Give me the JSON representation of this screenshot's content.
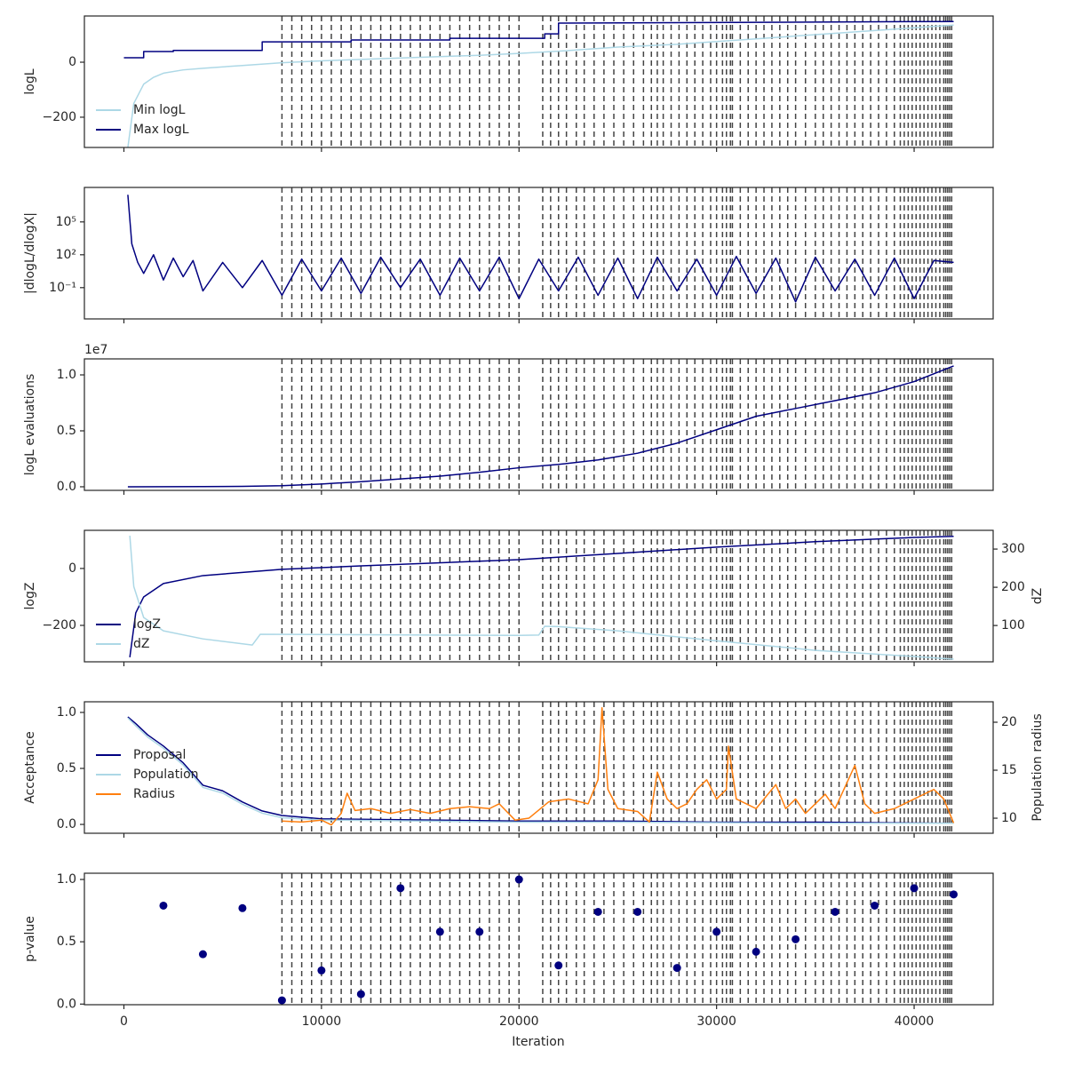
{
  "xlim": [
    -2000,
    44000
  ],
  "xticks": [
    0,
    10000,
    20000,
    30000,
    40000
  ],
  "xlabel": "Iteration",
  "vlines": [
    8000,
    8500,
    9000,
    9500,
    10000,
    10500,
    11000,
    11500,
    12000,
    12500,
    13000,
    13500,
    14000,
    14500,
    15000,
    15500,
    16000,
    16500,
    17000,
    17500,
    18000,
    18500,
    19000,
    19500,
    20000,
    21200,
    21600,
    22000,
    22400,
    22900,
    23300,
    23800,
    24300,
    24800,
    25300,
    25800,
    26300,
    26700,
    27000,
    27300,
    27700,
    28100,
    28500,
    28900,
    29300,
    29700,
    30000,
    30300,
    30500,
    30700,
    30800,
    31200,
    31600,
    32000,
    32400,
    32800,
    33200,
    33600,
    34000,
    34500,
    35000,
    35400,
    35800,
    36200,
    36600,
    37000,
    37400,
    37800,
    38200,
    38600,
    39000,
    39300,
    39500,
    39700,
    39900,
    40100,
    40300,
    40500,
    40700,
    40900,
    41100,
    41300,
    41500,
    41600,
    41700,
    41800,
    41900
  ],
  "chart_data": [
    {
      "type": "line",
      "ylabel": "logL",
      "ylim": [
        -310,
        168
      ],
      "yticks": [
        {
          "value": -200,
          "label": "−200"
        },
        0
      ],
      "legend": "lower left",
      "series": [
        {
          "name": "Min logL",
          "color": "#add8e6",
          "x": [
            200,
            500,
            1000,
            1500,
            2000,
            3000,
            4000,
            6000,
            8000,
            10000,
            12000,
            15000,
            18000,
            20000,
            22000,
            25000,
            28000,
            30000,
            32000,
            35000,
            38000,
            40000,
            42000
          ],
          "values": [
            -310,
            -150,
            -80,
            -55,
            -40,
            -28,
            -22,
            -12,
            -2,
            5,
            10,
            18,
            25,
            32,
            40,
            55,
            65,
            75,
            85,
            100,
            115,
            125,
            135
          ]
        },
        {
          "name": "Max logL",
          "color": "#000080",
          "x": [
            0,
            1000,
            1000,
            2500,
            2500,
            7000,
            7000,
            11500,
            11500,
            16500,
            16500,
            21300,
            21300,
            22000,
            22000,
            42000
          ],
          "values": [
            16,
            16,
            39,
            39,
            43,
            43,
            74,
            74,
            81,
            81,
            87,
            87,
            103,
            103,
            142,
            148
          ]
        }
      ]
    },
    {
      "type": "line",
      "ylabel": "|dlogL/dlogX|",
      "log_scale": true,
      "ylim": [
        0.00014,
        140000000
      ],
      "yticks": [
        {
          "value": 0.1,
          "label": "10⁻¹"
        },
        {
          "value": 100,
          "label": "10²"
        },
        {
          "value": 100000,
          "label": "10⁵"
        }
      ],
      "series": [
        {
          "color": "#000080",
          "x": [
            200,
            400,
            700,
            1000,
            1500,
            2000,
            2500,
            3000,
            3500,
            4000,
            5000,
            6000,
            7000,
            8000,
            9000,
            10000,
            11000,
            12000,
            13000,
            14000,
            15000,
            16000,
            17000,
            18000,
            19000,
            20000,
            21000,
            22000,
            23000,
            24000,
            25000,
            26000,
            27000,
            28000,
            29000,
            30000,
            31000,
            32000,
            33000,
            34000,
            35000,
            36000,
            37000,
            38000,
            39000,
            40000,
            41000,
            42000
          ],
          "values": [
            30000000,
            1000,
            20,
            2,
            100,
            0.5,
            50,
            1,
            30,
            0.05,
            20,
            0.1,
            30,
            0.02,
            40,
            0.05,
            50,
            0.03,
            60,
            0.1,
            40,
            0.02,
            50,
            0.05,
            60,
            0.01,
            40,
            0.05,
            60,
            0.02,
            50,
            0.01,
            60,
            0.05,
            40,
            0.02,
            70,
            0.03,
            50,
            0.005,
            60,
            0.05,
            40,
            0.02,
            50,
            0.01,
            30,
            20
          ]
        }
      ]
    },
    {
      "type": "line",
      "ylabel": "logL evaluations",
      "offset_label": "1e7",
      "ylim": [
        -320000,
        11430000
      ],
      "yticks": [
        {
          "value": 0,
          "label": "0.0"
        },
        {
          "value": 5000000,
          "label": "0.5"
        },
        {
          "value": 10000000,
          "label": "1.0"
        }
      ],
      "series": [
        {
          "color": "#000080",
          "x": [
            200,
            2000,
            4000,
            6000,
            8000,
            10000,
            12000,
            14000,
            16000,
            18000,
            20000,
            22000,
            24000,
            26000,
            28000,
            30000,
            32000,
            34000,
            36000,
            38000,
            40000,
            42000
          ],
          "values": [
            0,
            10000,
            20000,
            40000,
            100000,
            250000,
            450000,
            700000,
            950000,
            1300000,
            1700000,
            2000000,
            2400000,
            3000000,
            3900000,
            5100000,
            6300000,
            7000000,
            7700000,
            8400000,
            9400000,
            10800000
          ]
        }
      ]
    },
    {
      "type": "line",
      "ylabel": "logZ",
      "y2label": "dZ",
      "ylim": [
        -328,
        134
      ],
      "yticks": [
        {
          "value": -200,
          "label": "−200"
        },
        0
      ],
      "y2lim": [
        5,
        349
      ],
      "y2ticks": [
        100,
        200,
        300
      ],
      "legend": "lower left",
      "series": [
        {
          "name": "logZ",
          "color": "#000080",
          "x": [
            300,
            600,
            1000,
            2000,
            4000,
            8000,
            12000,
            20000,
            25000,
            30000,
            35000,
            40000,
            42000
          ],
          "values": [
            -312,
            -156,
            -100,
            -53,
            -25,
            -3,
            9,
            31,
            53,
            75,
            94,
            109,
            113
          ]
        },
        {
          "name": "dZ",
          "color": "#add8e6",
          "axis": "y2",
          "x": [
            300,
            500,
            1000,
            2000,
            4000,
            6500,
            6900,
            12000,
            20000,
            21000,
            21300,
            22000,
            25000,
            30000,
            35000,
            40000,
            42000
          ],
          "values": [
            335,
            202,
            121,
            86,
            65,
            49,
            77,
            76,
            74,
            75,
            98,
            97,
            86,
            60,
            35,
            19,
            12
          ]
        }
      ]
    },
    {
      "type": "line",
      "ylabel": "Acceptance",
      "y2label": "Population radius",
      "ylim": [
        -0.079,
        1.095
      ],
      "yticks": [
        {
          "value": 0,
          "label": "0.0"
        },
        {
          "value": 0.5,
          "label": "0.5"
        },
        {
          "value": 1,
          "label": "1.0"
        }
      ],
      "y2lim": [
        8.43,
        22.13
      ],
      "y2ticks": [
        10,
        15,
        20
      ],
      "legend": "center left",
      "series": [
        {
          "name": "Proposal",
          "color": "#000080",
          "x": [
            200,
            600,
            1200,
            2000,
            3000,
            3500,
            4000,
            5000,
            6000,
            7000,
            8000,
            10000,
            15000,
            20000,
            25000,
            30000,
            35000,
            42000
          ],
          "values": [
            0.96,
            0.9,
            0.8,
            0.7,
            0.55,
            0.45,
            0.35,
            0.3,
            0.2,
            0.12,
            0.08,
            0.05,
            0.04,
            0.03,
            0.03,
            0.02,
            0.02,
            0.01
          ]
        },
        {
          "name": "Population",
          "color": "#add8e6",
          "x": [
            200,
            600,
            1200,
            2000,
            3000,
            3500,
            4000,
            5000,
            6000,
            7000,
            8000,
            10000,
            15000,
            20000,
            25000,
            30000,
            35000,
            42000
          ],
          "values": [
            0.95,
            0.88,
            0.78,
            0.68,
            0.53,
            0.43,
            0.33,
            0.28,
            0.18,
            0.1,
            0.06,
            0.04,
            0.03,
            0.02,
            0.02,
            0.015,
            0.01,
            0.01
          ]
        },
        {
          "name": "Radius",
          "color": "#ff7f0e",
          "axis": "y2",
          "x": [
            8000,
            9000,
            10000,
            10500,
            11000,
            11300,
            11700,
            12500,
            13500,
            14500,
            15500,
            16500,
            17500,
            18500,
            19000,
            19800,
            20500,
            21500,
            22500,
            23500,
            24000,
            24200,
            24500,
            25000,
            26000,
            26600,
            27000,
            27500,
            28000,
            28500,
            29000,
            29500,
            30000,
            30500,
            30600,
            31000,
            31500,
            32000,
            33000,
            33500,
            34000,
            34500,
            35000,
            35500,
            36000,
            37000,
            37500,
            38000,
            39000,
            40000,
            41000,
            41500,
            42000
          ],
          "values": [
            9.7,
            9.6,
            9.8,
            9.3,
            10.5,
            12.6,
            10.8,
            11,
            10.5,
            10.9,
            10.5,
            11,
            11.2,
            11,
            11.5,
            9.8,
            10,
            11.7,
            12,
            11.5,
            14,
            21.5,
            13,
            11,
            10.7,
            9.6,
            14.8,
            12,
            11,
            11.5,
            13,
            14,
            12,
            13,
            17.5,
            12,
            11.5,
            11,
            13.5,
            11,
            12,
            10.5,
            11.5,
            12.5,
            11,
            15.5,
            11.5,
            10.5,
            11,
            12,
            13,
            12,
            9.5
          ]
        }
      ]
    },
    {
      "type": "scatter",
      "ylabel": "p-value",
      "ylim": [
        -0.005,
        1.05
      ],
      "yticks": [
        {
          "value": 0,
          "label": "0.0"
        },
        {
          "value": 0.5,
          "label": "0.5"
        },
        {
          "value": 1,
          "label": "1.0"
        }
      ],
      "series": [
        {
          "color": "#000080",
          "x": [
            2000,
            4000,
            6000,
            8000,
            10000,
            12000,
            14000,
            16000,
            18000,
            20000,
            22000,
            24000,
            26000,
            28000,
            30000,
            32000,
            34000,
            36000,
            38000,
            40000,
            42000
          ],
          "values": [
            0.79,
            0.4,
            0.77,
            0.03,
            0.27,
            0.08,
            0.93,
            0.58,
            0.58,
            1.0,
            0.31,
            0.74,
            0.74,
            0.29,
            0.58,
            0.42,
            0.52,
            0.74,
            0.79,
            0.93,
            0.88
          ]
        }
      ]
    }
  ]
}
